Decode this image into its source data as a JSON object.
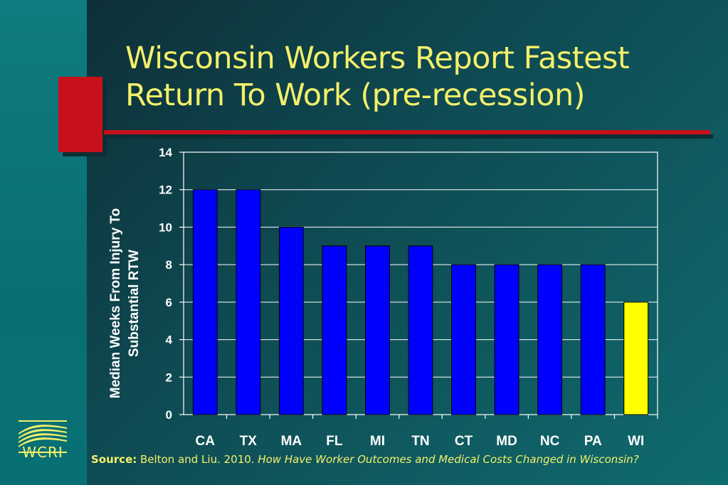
{
  "slide": {
    "title_line1": "Wisconsin Workers Report Fastest",
    "title_line2": "Return To Work (pre-recession)",
    "source_label": "Source:",
    "source_text": "Belton and Liu. 2010.",
    "source_title": "How Have Worker Outcomes and Medical Costs Changed in Wisconsin?",
    "logo_text": "WCRI"
  },
  "colors": {
    "bar": "#0000ff",
    "highlight_bar": "#ffff00",
    "title_text": "#f3f06a",
    "accent_red": "#c8101a"
  },
  "chart_data": {
    "type": "bar",
    "categories": [
      "CA",
      "TX",
      "MA",
      "FL",
      "MI",
      "TN",
      "CT",
      "MD",
      "NC",
      "PA",
      "WI"
    ],
    "values": [
      12,
      12,
      10,
      9,
      9,
      9,
      8,
      8,
      8,
      8,
      6
    ],
    "highlight": "WI",
    "ylabel": "Median Weeks From Injury To Substantial RTW",
    "ylabel_lines": [
      "Median Weeks From Injury To",
      "Substantial RTW"
    ],
    "ylim": [
      0,
      14
    ],
    "yticks": [
      0,
      2,
      4,
      6,
      8,
      10,
      12,
      14
    ],
    "grid": true
  }
}
